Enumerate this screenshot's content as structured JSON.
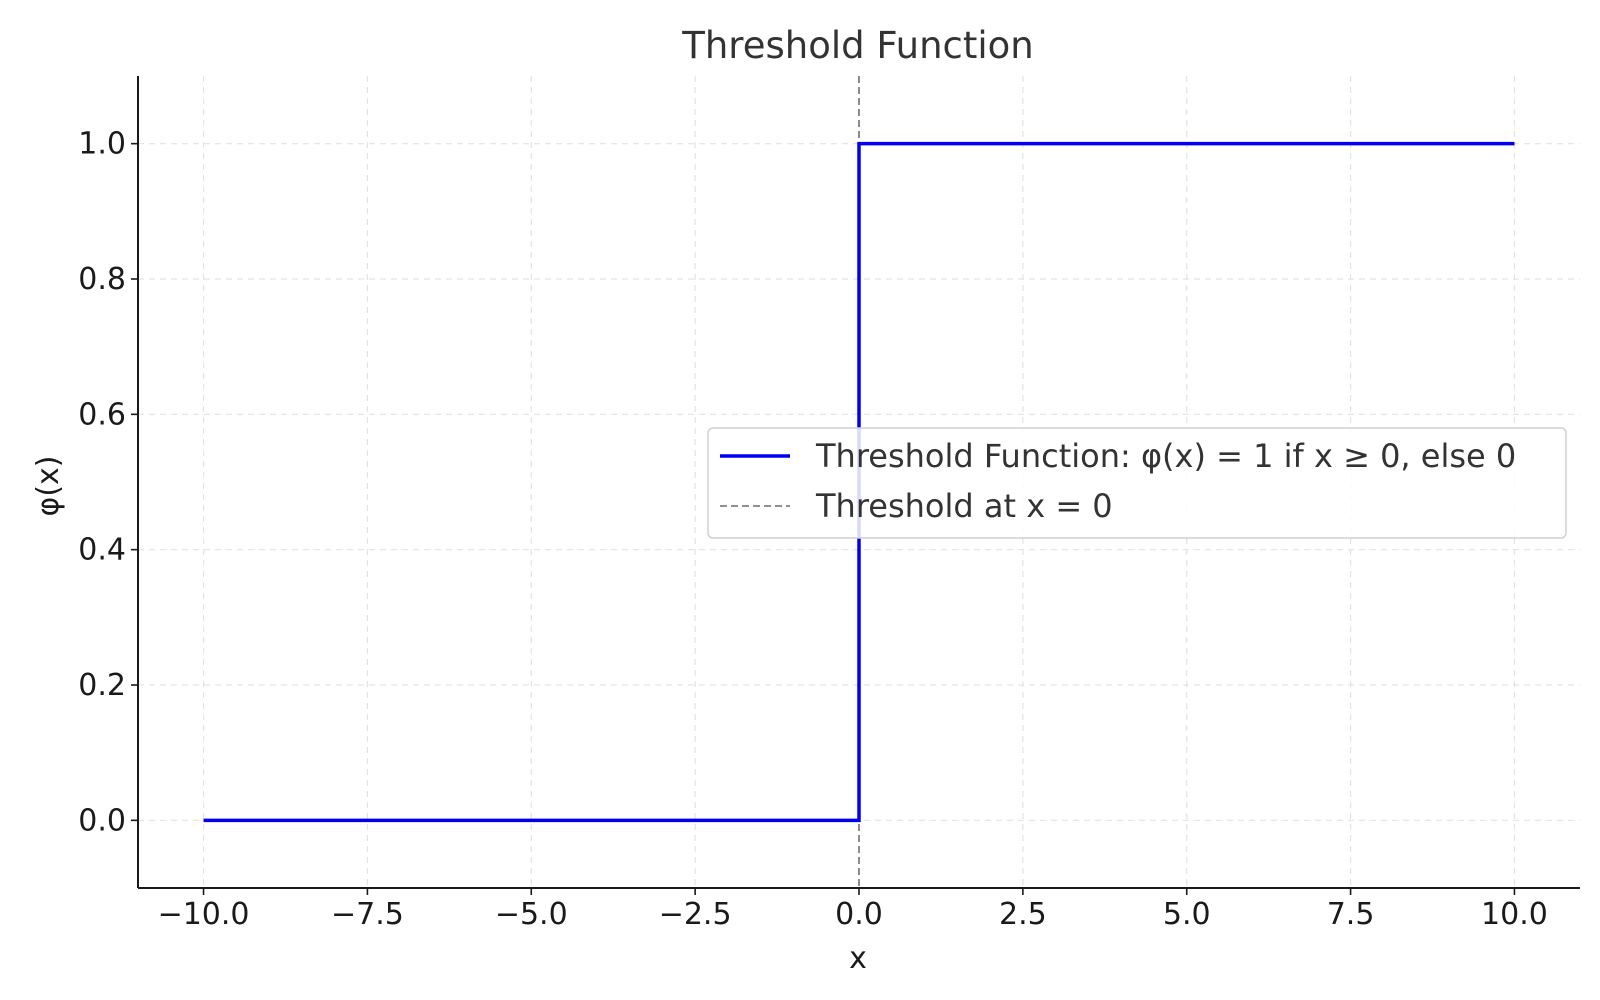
{
  "chart_data": {
    "type": "line",
    "title": "Threshold Function",
    "xlabel": "x",
    "ylabel": "φ(x)",
    "xlim": [
      -11,
      11
    ],
    "ylim": [
      -0.1,
      1.1
    ],
    "xticks": [
      -10,
      -7.5,
      -5,
      -2.5,
      0,
      2.5,
      5,
      7.5,
      10
    ],
    "xtick_labels": [
      "−10.0",
      "−7.5",
      "−5.0",
      "−2.5",
      "0.0",
      "2.5",
      "5.0",
      "7.5",
      "10.0"
    ],
    "yticks": [
      0,
      0.2,
      0.4,
      0.6,
      0.8,
      1.0
    ],
    "ytick_labels": [
      "0.0",
      "0.2",
      "0.4",
      "0.6",
      "0.8",
      "1.0"
    ],
    "grid": true,
    "legend_position": "center-right",
    "series": [
      {
        "name": "Threshold Function: φ(x) = 1 if x ≥ 0, else 0",
        "color": "#0000ee",
        "style": "solid",
        "x": [
          -10,
          0,
          0,
          10
        ],
        "y": [
          0,
          0,
          1,
          1
        ]
      }
    ],
    "reference_lines": [
      {
        "name": "Threshold at x = 0",
        "orientation": "vertical",
        "x": 0,
        "color": "#808080",
        "style": "dashed"
      }
    ]
  }
}
